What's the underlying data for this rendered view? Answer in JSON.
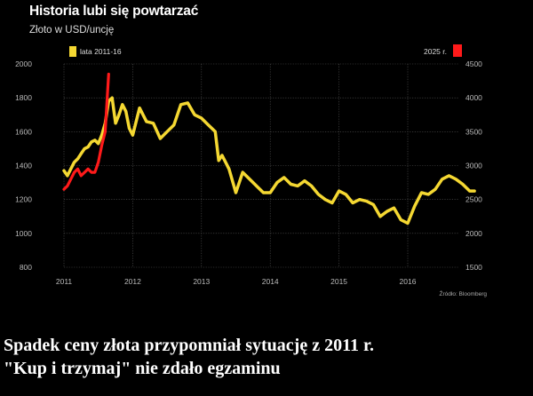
{
  "header": {
    "title": "Historia lubi się powtarzać",
    "subtitle": "Złoto w USD/uncję"
  },
  "source": "Źródło: Bloomberg",
  "caption": {
    "line1": "Spadek ceny złota przypomniał sytuację z 2011 r.",
    "line2": "\"Kup i trzymaj\" nie zdało egzaminu"
  },
  "chart_data": {
    "type": "line",
    "x_ticks": [
      "2011",
      "2012",
      "2013",
      "2014",
      "2015",
      "2016"
    ],
    "y_left": {
      "min": 800,
      "max": 2000,
      "ticks": [
        800,
        1000,
        1200,
        1400,
        1600,
        1800,
        2000
      ]
    },
    "y_right": {
      "min": 1500,
      "max": 4500,
      "ticks": [
        1500,
        2000,
        2500,
        3000,
        3500,
        4000,
        4500
      ]
    },
    "grid": true,
    "legend": "top",
    "series": [
      {
        "name": "lata 2011-16",
        "color": "#f5d832",
        "axis": "left",
        "x": [
          2011.0,
          2011.05,
          2011.1,
          2011.15,
          2011.2,
          2011.25,
          2011.3,
          2011.35,
          2011.4,
          2011.45,
          2011.5,
          2011.55,
          2011.6,
          2011.65,
          2011.7,
          2011.75,
          2011.8,
          2011.85,
          2011.9,
          2011.95,
          2012.0,
          2012.1,
          2012.2,
          2012.3,
          2012.4,
          2012.5,
          2012.6,
          2012.7,
          2012.8,
          2012.9,
          2013.0,
          2013.1,
          2013.2,
          2013.25,
          2013.3,
          2013.4,
          2013.5,
          2013.6,
          2013.7,
          2013.8,
          2013.9,
          2014.0,
          2014.1,
          2014.2,
          2014.3,
          2014.4,
          2014.5,
          2014.6,
          2014.7,
          2014.8,
          2014.9,
          2015.0,
          2015.1,
          2015.2,
          2015.3,
          2015.4,
          2015.5,
          2015.6,
          2015.7,
          2015.8,
          2015.9,
          2016.0,
          2016.1,
          2016.2,
          2016.3,
          2016.4,
          2016.5,
          2016.6,
          2016.7,
          2016.8,
          2016.9,
          2016.97
        ],
        "values": [
          1370,
          1340,
          1380,
          1420,
          1440,
          1470,
          1500,
          1510,
          1540,
          1550,
          1530,
          1580,
          1650,
          1780,
          1800,
          1650,
          1700,
          1760,
          1720,
          1620,
          1580,
          1740,
          1660,
          1650,
          1560,
          1600,
          1640,
          1760,
          1770,
          1700,
          1680,
          1640,
          1600,
          1430,
          1460,
          1380,
          1240,
          1360,
          1320,
          1280,
          1240,
          1240,
          1300,
          1330,
          1290,
          1280,
          1310,
          1280,
          1230,
          1200,
          1180,
          1250,
          1230,
          1180,
          1200,
          1190,
          1170,
          1100,
          1130,
          1150,
          1080,
          1060,
          1160,
          1240,
          1230,
          1260,
          1320,
          1340,
          1320,
          1290,
          1250,
          1250
        ]
      },
      {
        "name": "2025 r.",
        "color": "#ff1a1a",
        "axis": "right",
        "x": [
          2011.0,
          2011.05,
          2011.1,
          2011.15,
          2011.2,
          2011.25,
          2011.3,
          2011.35,
          2011.4,
          2011.45,
          2011.5,
          2011.55,
          2011.6,
          2011.65
        ],
        "values": [
          2650,
          2700,
          2800,
          2900,
          2950,
          2850,
          2900,
          2950,
          2900,
          2900,
          3050,
          3300,
          3500,
          4350
        ]
      }
    ]
  }
}
